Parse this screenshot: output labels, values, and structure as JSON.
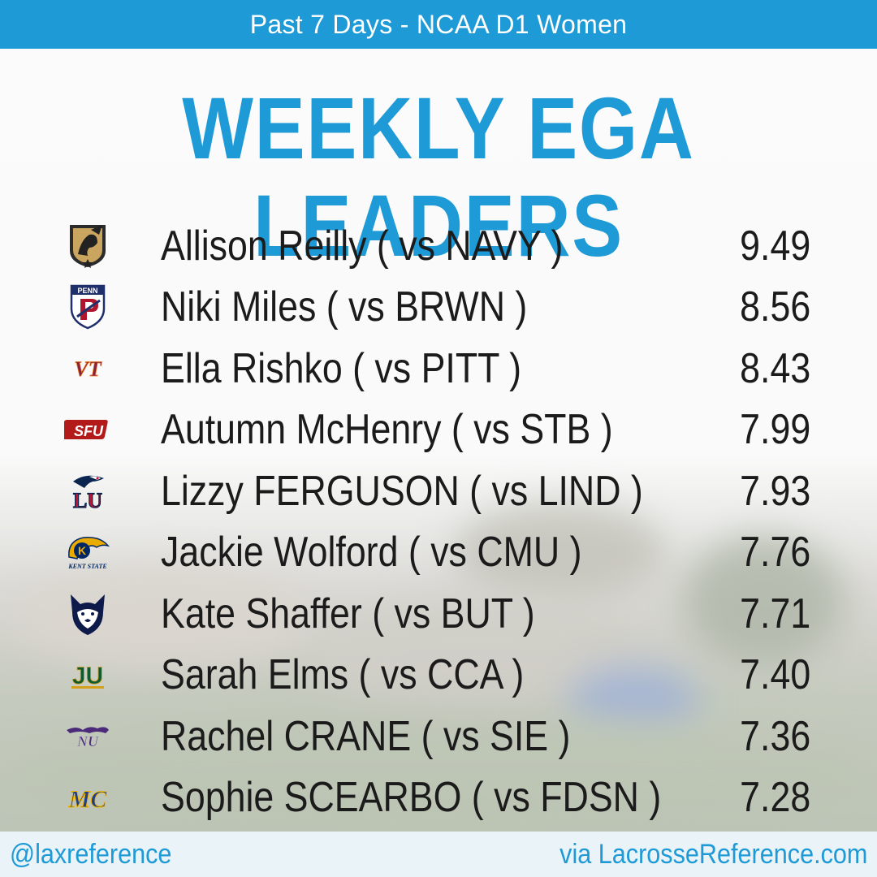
{
  "header": {
    "subtitle": "Past 7 Days - NCAA D1 Women"
  },
  "title": "WEEKLY EGA LEADERS",
  "leaders": [
    {
      "name": "Allison Reilly ( vs NAVY )",
      "value": "9.49",
      "logo": "army-knight-logo"
    },
    {
      "name": "Niki Miles ( vs BRWN )",
      "value": "8.56",
      "logo": "penn-shield-logo"
    },
    {
      "name": "Ella Rishko ( vs PITT )",
      "value": "8.43",
      "logo": "virginia-tech-logo"
    },
    {
      "name": "Autumn McHenry ( vs STB )",
      "value": "7.99",
      "logo": "sfu-logo"
    },
    {
      "name": "Lizzy FERGUSON ( vs LIND )",
      "value": "7.93",
      "logo": "liberty-eagle-logo"
    },
    {
      "name": "Jackie Wolford ( vs CMU )",
      "value": "7.76",
      "logo": "kent-state-logo"
    },
    {
      "name": "Kate Shaffer ( vs BUT )",
      "value": "7.71",
      "logo": "uconn-husky-logo"
    },
    {
      "name": "Sarah Elms ( vs CCA )",
      "value": "7.40",
      "logo": "ju-logo"
    },
    {
      "name": "Rachel CRANE ( vs SIE )",
      "value": "7.36",
      "logo": "niagara-logo"
    },
    {
      "name": "Sophie SCEARBO ( vs FDSN )",
      "value": "7.28",
      "logo": "merrimack-logo"
    }
  ],
  "logo_text": {
    "penn": "PENN",
    "vt": "VT",
    "sfu": "SFU",
    "lu": "LU",
    "kent_letter": "K",
    "kent_word": "KENT STATE",
    "ju": "JU",
    "niu": "NU",
    "mc": "MC"
  },
  "footer": {
    "handle": "@laxreference",
    "via": "via LacrosseReference.com"
  },
  "colors": {
    "accent": "#1e9ad6",
    "text": "#1b1b1b"
  }
}
